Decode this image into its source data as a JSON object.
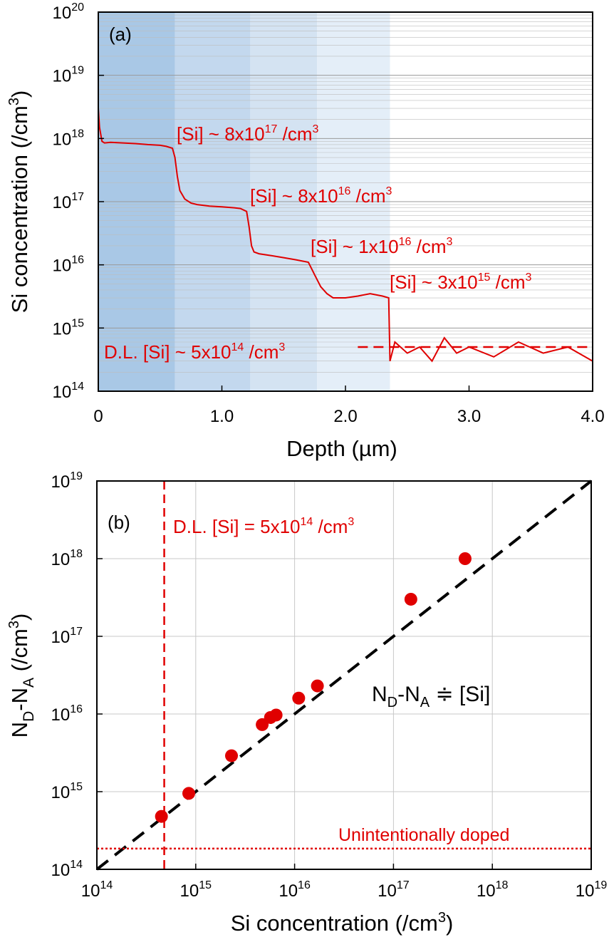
{
  "colors": {
    "profile": "#e00000",
    "points": "#e00000",
    "fit_line": "#000000",
    "band1": "#a9c8e6",
    "band2": "#c3d8ee",
    "band3": "#d4e3f2",
    "band4": "#e4eef8"
  },
  "chart_data": [
    {
      "type": "line",
      "panel_label": "(a)",
      "xlabel": "Depth (µm)",
      "ylabel": "Si concentration (/cm3)",
      "xlim": [
        0,
        4.0
      ],
      "ylim": [
        100000000000000.0,
        1e+20
      ],
      "yscale": "log",
      "grid": "horizontal minor gridlines on log scale",
      "x_ticks": [
        "0",
        "1.0",
        "2.0",
        "3.0",
        "4.0"
      ],
      "y_ticks": [
        {
          "base": "10",
          "exp": "14"
        },
        {
          "base": "10",
          "exp": "15"
        },
        {
          "base": "10",
          "exp": "16"
        },
        {
          "base": "10",
          "exp": "17"
        },
        {
          "base": "10",
          "exp": "18"
        },
        {
          "base": "10",
          "exp": "19"
        },
        {
          "base": "10",
          "exp": "20"
        }
      ],
      "shaded_regions": [
        {
          "from": 0,
          "to": 0.62
        },
        {
          "from": 0.62,
          "to": 1.23
        },
        {
          "from": 1.23,
          "to": 1.77
        },
        {
          "from": 1.77,
          "to": 2.36
        }
      ],
      "series": [
        {
          "depth": [
            0,
            0.01,
            0.03,
            0.05,
            0.1,
            0.2,
            0.3,
            0.4,
            0.5,
            0.55,
            0.6,
            0.62,
            0.64,
            0.66,
            0.7,
            0.75,
            0.8,
            0.9,
            1.0,
            1.1,
            1.15,
            1.2,
            1.22,
            1.24,
            1.26,
            1.3,
            1.4,
            1.5,
            1.6,
            1.7,
            1.75,
            1.8,
            1.85,
            1.9,
            2.0,
            2.1,
            2.2,
            2.3,
            2.35,
            2.36,
            2.4,
            2.5,
            2.6,
            2.7,
            2.8,
            2.9,
            3.0,
            3.2,
            3.4,
            3.6,
            3.8,
            4.0
          ],
          "concentration": [
            3e+18,
            1.5e+18,
            9e+17,
            8.5e+17,
            8.7e+17,
            8.5e+17,
            8.3e+17,
            8e+17,
            7.8e+17,
            7.5e+17,
            7e+17,
            5e+17,
            2.5e+17,
            1.5e+17,
            1.1e+17,
            9.5e+16,
            9e+16,
            8.5e+16,
            8.3e+16,
            8e+16,
            7.8e+16,
            7e+16,
            4e+16,
            2e+16,
            1.6e+16,
            1.5e+16,
            1.4e+16,
            1.3e+16,
            1.2e+16,
            1.1e+16,
            7000000000000000.0,
            4500000000000000.0,
            3500000000000000.0,
            3000000000000000.0,
            3000000000000000.0,
            3200000000000000.0,
            3500000000000000.0,
            3200000000000000.0,
            3000000000000000.0,
            300000000000000.0,
            600000000000000.0,
            400000000000000.0,
            500000000000000.0,
            300000000000000.0,
            700000000000000.0,
            400000000000000.0,
            500000000000000.0,
            350000000000000.0,
            600000000000000.0,
            400000000000000.0,
            500000000000000.0,
            300000000000000.0
          ]
        }
      ],
      "detection_limit": 500000000000000.0,
      "annotations": [
        {
          "id": "l1",
          "prefix": "[Si] ~ 8x10",
          "exp": "17",
          "suffix": " /cm",
          "unit_exp": "3"
        },
        {
          "id": "l2",
          "prefix": "[Si] ~ 8x10",
          "exp": "16",
          "suffix": " /cm",
          "unit_exp": "3"
        },
        {
          "id": "l3",
          "prefix": "[Si] ~ 1x10",
          "exp": "16",
          "suffix": " /cm",
          "unit_exp": "3"
        },
        {
          "id": "l4",
          "prefix": "[Si] ~ 3x10",
          "exp": "15",
          "suffix": " /cm",
          "unit_exp": "3"
        },
        {
          "id": "dl",
          "prefix": "D.L. [Si] ~ 5x10",
          "exp": "14",
          "suffix": " /cm",
          "unit_exp": "3"
        }
      ]
    },
    {
      "type": "scatter",
      "panel_label": "(b)",
      "xlabel": "Si concentration (/cm3)",
      "ylabel": "ND-NA (/cm3)",
      "xlim": [
        100000000000000.0,
        1e+19
      ],
      "ylim": [
        100000000000000.0,
        1e+19
      ],
      "xscale": "log",
      "yscale": "log",
      "grid": "on",
      "ticks": [
        {
          "base": "10",
          "exp": "14"
        },
        {
          "base": "10",
          "exp": "15"
        },
        {
          "base": "10",
          "exp": "16"
        },
        {
          "base": "10",
          "exp": "17"
        },
        {
          "base": "10",
          "exp": "18"
        },
        {
          "base": "10",
          "exp": "19"
        }
      ],
      "points": [
        {
          "x": 450000000000000.0,
          "y": 480000000000000.0
        },
        {
          "x": 850000000000000.0,
          "y": 950000000000000.0
        },
        {
          "x": 2300000000000000.0,
          "y": 2900000000000000.0
        },
        {
          "x": 4700000000000000.0,
          "y": 7300000000000000.0
        },
        {
          "x": 5700000000000000.0,
          "y": 9000000000000000.0
        },
        {
          "x": 6500000000000000.0,
          "y": 9700000000000000.0
        },
        {
          "x": 1.1e+16,
          "y": 1.6e+16
        },
        {
          "x": 1.7e+16,
          "y": 2.3e+16
        },
        {
          "x": 1.5e+17,
          "y": 3e+17
        },
        {
          "x": 5.3e+17,
          "y": 1e+18
        }
      ],
      "fit_line": {
        "from": [
          100000000000000.0,
          100000000000000.0
        ],
        "to": [
          1e+19,
          1e+19
        ]
      },
      "dl_line_x": 480000000000000.0,
      "uid_line_y": 185000000000000.0,
      "annotations": {
        "dl": {
          "prefix": "D.L. [Si] = 5x10",
          "exp": "14",
          "suffix": " /cm",
          "unit_exp": "3"
        },
        "uid": "Unintentionally doped",
        "relation": "ND-NA ≑ [Si]"
      }
    }
  ]
}
